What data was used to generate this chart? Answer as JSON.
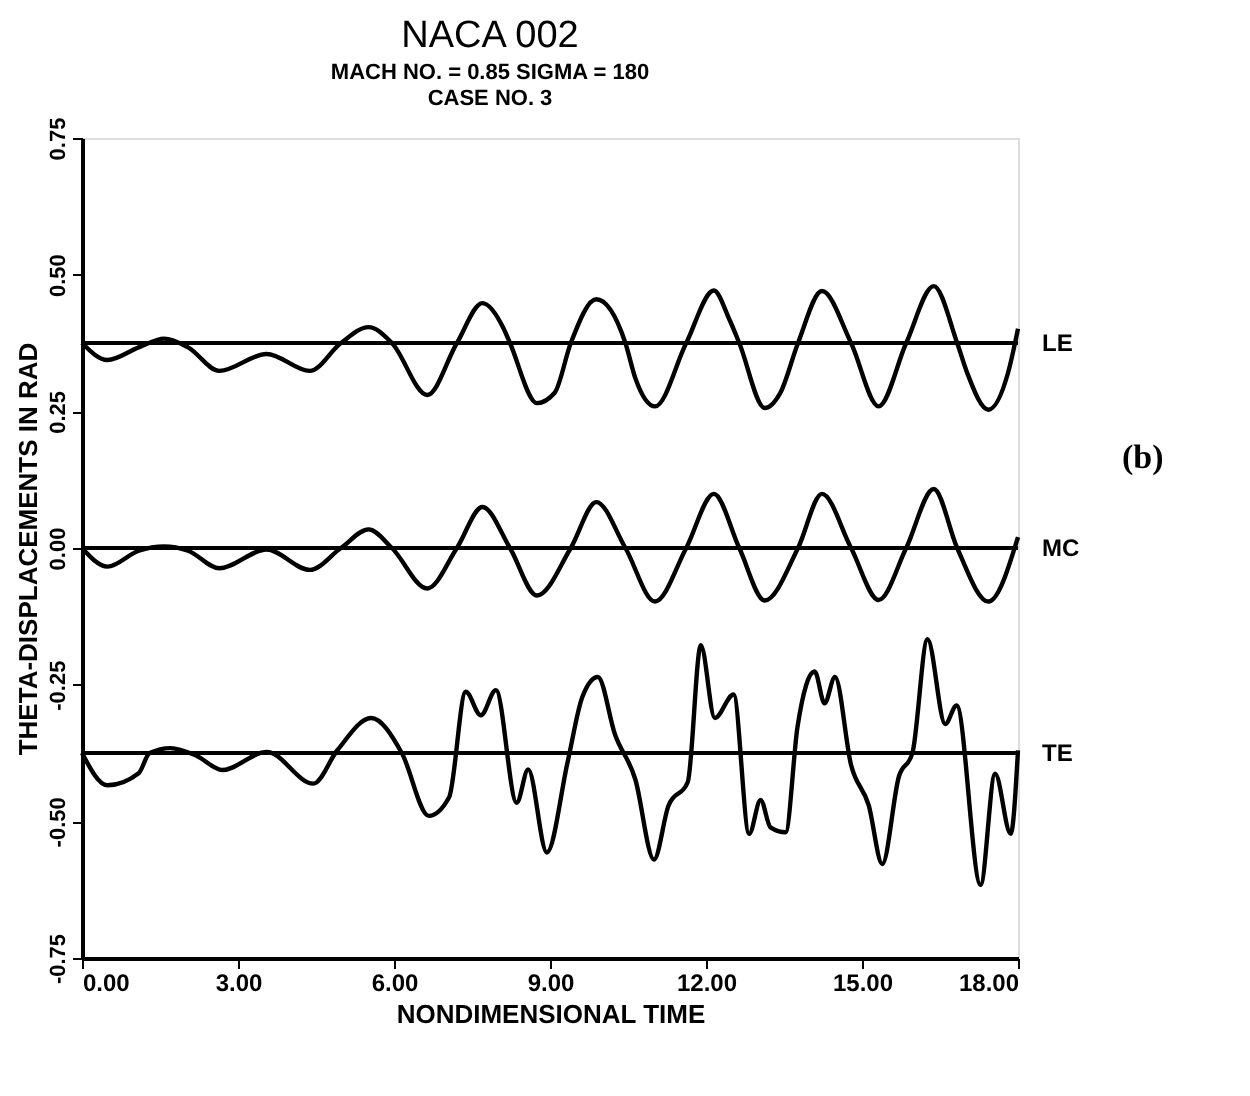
{
  "chart_data": {
    "type": "line",
    "title": "NACA 002",
    "subtitle": [
      "MACH NO. = 0.85  SIGMA = 180",
      "CASE NO. 3"
    ],
    "xlabel": "NONDIMENSIONAL TIME",
    "ylabel": "THETA-DISPLACEMENTS IN RAD",
    "xlim": [
      0,
      18
    ],
    "ylim": [
      -0.75,
      0.75
    ],
    "xticks": [
      {
        "value": 0,
        "label": "0.00"
      },
      {
        "value": 3,
        "label": "3.00"
      },
      {
        "value": 6,
        "label": "6.00"
      },
      {
        "value": 9,
        "label": "9.00"
      },
      {
        "value": 12,
        "label": "12.00"
      },
      {
        "value": 15,
        "label": "15.00"
      },
      {
        "value": 18,
        "label": "18.00"
      }
    ],
    "yticks": [
      {
        "value": -0.75,
        "label": "-0.75"
      },
      {
        "value": -0.5,
        "label": "-0.50"
      },
      {
        "value": -0.25,
        "label": "-0.25"
      },
      {
        "value": 0,
        "label": "0.00"
      },
      {
        "value": 0.25,
        "label": "0.25"
      },
      {
        "value": 0.5,
        "label": "0.50"
      },
      {
        "value": 0.75,
        "label": "0.75"
      }
    ],
    "grid": false,
    "marker": "none",
    "line_style": "solid",
    "ref_lines": [
      {
        "axis": "y",
        "value": 0.375,
        "label": "LE",
        "color": "#000000"
      },
      {
        "axis": "y",
        "value": 0,
        "label": "MC",
        "color": "#000000"
      },
      {
        "axis": "y",
        "value": -0.375,
        "label": "TE",
        "color": "#000000"
      }
    ],
    "annotations": [
      "(b)"
    ],
    "series": [
      {
        "color": "#000000",
        "x": [
          0,
          0.49,
          1.09,
          1.58,
          2.04,
          2.64,
          3.55,
          4.38,
          4.98,
          5.51,
          5.96,
          6.64,
          7.21,
          7.7,
          8.11,
          8.23,
          8.75,
          9.09,
          9.4,
          9.89,
          10.45,
          10.64,
          11.02,
          11.62,
          12.15,
          12.45,
          12.64,
          13.13,
          13.43,
          13.77,
          14.23,
          14.79,
          15.32,
          15.85,
          16.38,
          16.83,
          17.02,
          17.43,
          17.81,
          18.0
        ],
        "values": [
          0.375,
          0.344,
          0.367,
          0.383,
          0.367,
          0.324,
          0.355,
          0.324,
          0.375,
          0.404,
          0.375,
          0.28,
          0.375,
          0.448,
          0.401,
          0.375,
          0.265,
          0.284,
          0.375,
          0.455,
          0.375,
          0.311,
          0.259,
          0.375,
          0.471,
          0.418,
          0.375,
          0.256,
          0.284,
          0.375,
          0.47,
          0.375,
          0.259,
          0.375,
          0.479,
          0.375,
          0.321,
          0.253,
          0.321,
          0.401
        ]
      },
      {
        "color": "#000000",
        "x": [
          0,
          0.49,
          1.09,
          1.58,
          2.04,
          2.64,
          3.55,
          4.38,
          4.98,
          5.51,
          5.96,
          6.64,
          7.21,
          7.7,
          8.23,
          8.75,
          9.4,
          9.89,
          10.45,
          11.02,
          11.62,
          12.15,
          12.64,
          13.13,
          13.77,
          14.23,
          14.79,
          15.32,
          15.85,
          16.38,
          16.83,
          17.43,
          18.0
        ],
        "values": [
          0,
          -0.034,
          -0.005,
          0.003,
          -0.005,
          -0.037,
          -0.003,
          -0.04,
          0,
          0.034,
          0,
          -0.074,
          0,
          0.075,
          0,
          -0.087,
          0,
          0.084,
          0,
          -0.098,
          0,
          0.099,
          0,
          -0.096,
          0,
          0.099,
          0,
          -0.095,
          0,
          0.108,
          0,
          -0.098,
          0.02
        ]
      },
      {
        "color": "#000000",
        "x": [
          0,
          0.49,
          1.09,
          1.3,
          1.7,
          2.2,
          2.7,
          3.55,
          4.45,
          4.91,
          5.56,
          6.15,
          6.67,
          7.06,
          7.38,
          7.67,
          7.96,
          8.36,
          8.58,
          8.94,
          9.34,
          9.62,
          9.92,
          10.25,
          10.64,
          11.0,
          11.28,
          11.65,
          11.9,
          12.17,
          12.53,
          12.83,
          13.05,
          13.24,
          13.53,
          13.76,
          14.09,
          14.28,
          14.48,
          14.79,
          15.13,
          15.39,
          15.71,
          15.97,
          16.26,
          16.6,
          16.82,
          17.28,
          17.56,
          17.86,
          18.0
        ],
        "values": [
          -0.375,
          -0.434,
          -0.412,
          -0.375,
          -0.366,
          -0.38,
          -0.406,
          -0.373,
          -0.431,
          -0.37,
          -0.311,
          -0.375,
          -0.49,
          -0.456,
          -0.263,
          -0.306,
          -0.26,
          -0.466,
          -0.405,
          -0.557,
          -0.391,
          -0.273,
          -0.236,
          -0.341,
          -0.423,
          -0.57,
          -0.471,
          -0.428,
          -0.178,
          -0.311,
          -0.268,
          -0.523,
          -0.461,
          -0.511,
          -0.52,
          -0.327,
          -0.226,
          -0.284,
          -0.236,
          -0.397,
          -0.471,
          -0.578,
          -0.418,
          -0.375,
          -0.167,
          -0.322,
          -0.288,
          -0.616,
          -0.413,
          -0.523,
          -0.37
        ]
      }
    ]
  }
}
